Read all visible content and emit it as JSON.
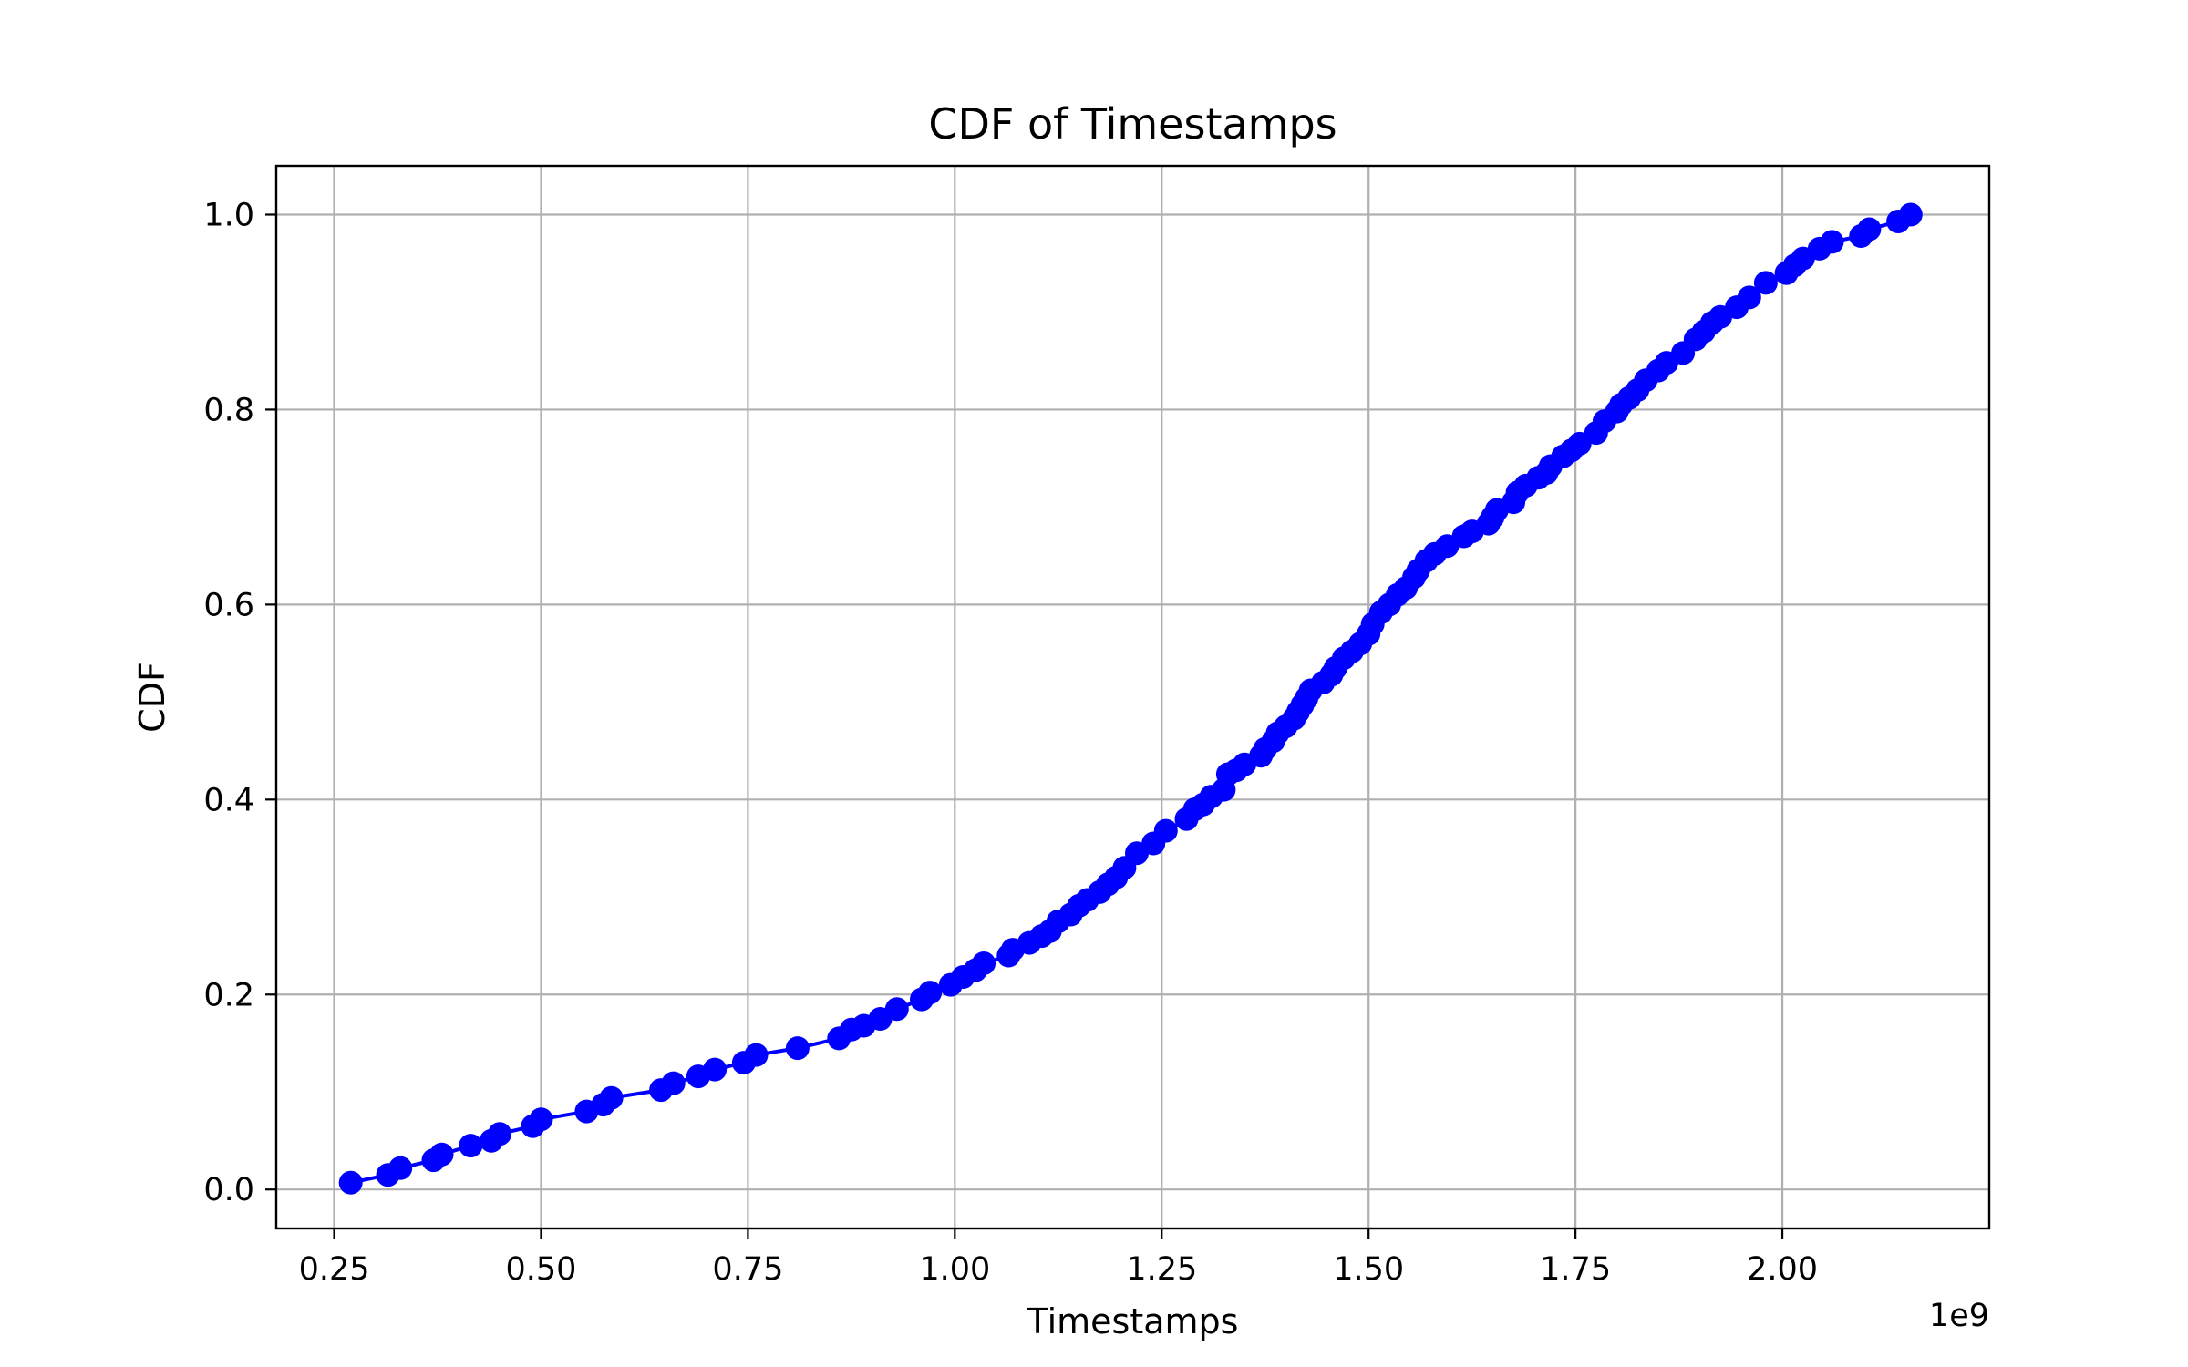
{
  "chart_data": {
    "type": "line",
    "title": "CDF of Timestamps",
    "xlabel": "Timestamps",
    "ylabel": "CDF",
    "x_offset_text": "1e9",
    "xlim": [
      0.18,
      2.25
    ],
    "ylim": [
      -0.04,
      1.05
    ],
    "x_ticks": [
      0.25,
      0.5,
      0.75,
      1.0,
      1.25,
      1.5,
      1.75,
      2.0
    ],
    "x_tick_labels": [
      "0.25",
      "0.50",
      "0.75",
      "1.00",
      "1.25",
      "1.50",
      "1.75",
      "2.00"
    ],
    "y_ticks": [
      0.0,
      0.2,
      0.4,
      0.6,
      0.8,
      1.0
    ],
    "y_tick_labels": [
      "0.0",
      "0.2",
      "0.4",
      "0.6",
      "0.8",
      "1.0"
    ],
    "grid": true,
    "color": "#0000ff",
    "marker": "circle",
    "x": [
      0.27,
      0.315,
      0.33,
      0.37,
      0.38,
      0.415,
      0.44,
      0.45,
      0.49,
      0.5,
      0.555,
      0.575,
      0.585,
      0.645,
      0.66,
      0.69,
      0.71,
      0.745,
      0.76,
      0.81,
      0.86,
      0.875,
      0.89,
      0.91,
      0.93,
      0.96,
      0.97,
      0.995,
      1.01,
      1.025,
      1.035,
      1.065,
      1.07,
      1.09,
      1.105,
      1.115,
      1.125,
      1.14,
      1.15,
      1.16,
      1.175,
      1.185,
      1.195,
      1.205,
      1.22,
      1.24,
      1.255,
      1.28,
      1.29,
      1.3,
      1.31,
      1.325,
      1.33,
      1.34,
      1.35,
      1.37,
      1.375,
      1.385,
      1.39,
      1.4,
      1.41,
      1.415,
      1.42,
      1.425,
      1.43,
      1.445,
      1.455,
      1.46,
      1.47,
      1.48,
      1.49,
      1.5,
      1.505,
      1.515,
      1.525,
      1.535,
      1.545,
      1.555,
      1.56,
      1.57,
      1.58,
      1.595,
      1.615,
      1.625,
      1.645,
      1.65,
      1.655,
      1.675,
      1.68,
      1.69,
      1.705,
      1.715,
      1.72,
      1.735,
      1.745,
      1.755,
      1.775,
      1.785,
      1.8,
      1.805,
      1.815,
      1.825,
      1.835,
      1.85,
      1.86,
      1.88,
      1.895,
      1.905,
      1.915,
      1.925,
      1.945,
      1.96,
      1.98,
      2.005,
      2.015,
      2.025,
      2.045,
      2.06,
      2.095,
      2.105,
      2.14,
      2.155
    ],
    "y": [
      0.007,
      0.015,
      0.022,
      0.03,
      0.036,
      0.045,
      0.05,
      0.057,
      0.065,
      0.072,
      0.08,
      0.087,
      0.094,
      0.102,
      0.109,
      0.116,
      0.123,
      0.13,
      0.138,
      0.145,
      0.155,
      0.164,
      0.168,
      0.175,
      0.185,
      0.195,
      0.202,
      0.21,
      0.218,
      0.225,
      0.232,
      0.24,
      0.246,
      0.253,
      0.26,
      0.265,
      0.275,
      0.282,
      0.291,
      0.297,
      0.305,
      0.313,
      0.32,
      0.33,
      0.345,
      0.355,
      0.368,
      0.38,
      0.39,
      0.395,
      0.403,
      0.41,
      0.426,
      0.43,
      0.436,
      0.445,
      0.452,
      0.46,
      0.468,
      0.475,
      0.483,
      0.49,
      0.497,
      0.504,
      0.512,
      0.52,
      0.528,
      0.535,
      0.545,
      0.552,
      0.56,
      0.57,
      0.58,
      0.592,
      0.6,
      0.61,
      0.617,
      0.628,
      0.635,
      0.645,
      0.652,
      0.66,
      0.67,
      0.675,
      0.683,
      0.69,
      0.697,
      0.705,
      0.715,
      0.722,
      0.73,
      0.735,
      0.742,
      0.752,
      0.758,
      0.765,
      0.776,
      0.788,
      0.798,
      0.805,
      0.812,
      0.82,
      0.83,
      0.84,
      0.848,
      0.858,
      0.872,
      0.88,
      0.889,
      0.895,
      0.905,
      0.915,
      0.93,
      0.94,
      0.948,
      0.955,
      0.965,
      0.972,
      0.978,
      0.985,
      0.993,
      1.0
    ]
  }
}
